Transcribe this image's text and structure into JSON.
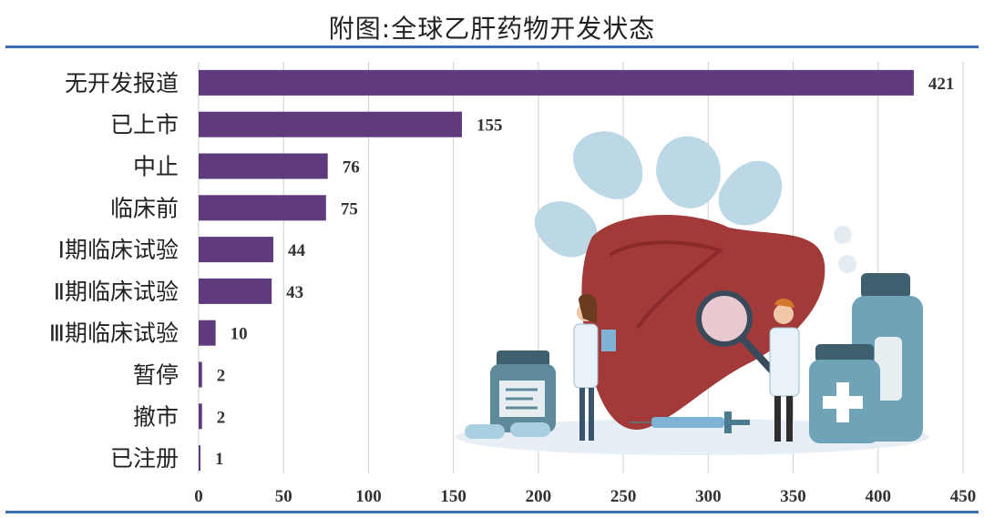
{
  "title": "附图:全球乙肝药物开发状态",
  "colors": {
    "bar": "#5f3b7d",
    "rule": "#3a6fb5",
    "grid": "#cfcfcf"
  },
  "chart_data": {
    "type": "bar",
    "orientation": "horizontal",
    "title": "附图:全球乙肝药物开发状态",
    "categories": [
      "无开发报道",
      "已上市",
      "中止",
      "临床前",
      "Ⅰ期临床试验",
      "Ⅱ期临床试验",
      "Ⅲ期临床试验",
      "暂停",
      "撤市",
      "已注册"
    ],
    "values": [
      421,
      155,
      76,
      75,
      44,
      43,
      10,
      2,
      2,
      1
    ],
    "xlim": [
      0,
      450
    ],
    "xticks": [
      0,
      50,
      100,
      150,
      200,
      250,
      300,
      350,
      400,
      450
    ],
    "xlabel": "",
    "ylabel": "",
    "grid": true,
    "data_labels": true
  },
  "illustration": {
    "description_icons": [
      "liver-icon",
      "doctor-icon",
      "magnifier-icon",
      "medicine-bottle-icon",
      "syringe-icon",
      "pill-icon"
    ]
  }
}
